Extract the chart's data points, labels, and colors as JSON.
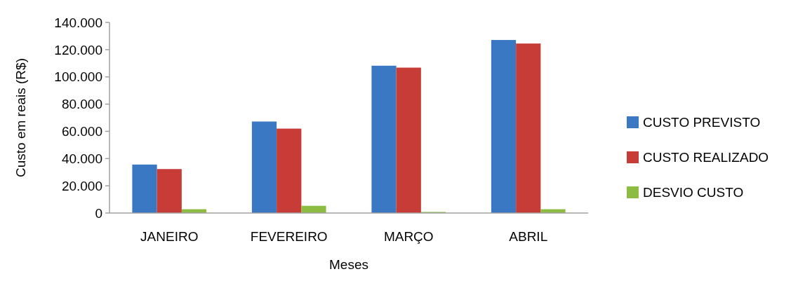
{
  "chart_data": {
    "type": "bar",
    "xlabel": "Meses",
    "ylabel": "Custo em reais (R$)",
    "categories": [
      "JANEIRO",
      "FEVEREIRO",
      "MARÇO",
      "ABRIL"
    ],
    "series": [
      {
        "name": "CUSTO PREVISTO",
        "color": "#3a78c4",
        "values": [
          35600,
          67200,
          108200,
          127100
        ]
      },
      {
        "name": "CUSTO REALIZADO",
        "color": "#c83c38",
        "values": [
          32300,
          62000,
          106800,
          124500
        ]
      },
      {
        "name": "DESVIO CUSTO",
        "color": "#8cbc42",
        "values": [
          2800,
          5300,
          800,
          2800
        ]
      }
    ],
    "ylim": [
      0,
      140000
    ],
    "yticks": [
      {
        "value": 0,
        "label": "0"
      },
      {
        "value": 20000,
        "label": "20.000"
      },
      {
        "value": 40000,
        "label": "40.000"
      },
      {
        "value": 60000,
        "label": "60.000"
      },
      {
        "value": 80000,
        "label": "80.000"
      },
      {
        "value": 100000,
        "label": "100.000"
      },
      {
        "value": 120000,
        "label": "120.000"
      },
      {
        "value": 140000,
        "label": "140.000"
      }
    ],
    "legend": "right"
  }
}
